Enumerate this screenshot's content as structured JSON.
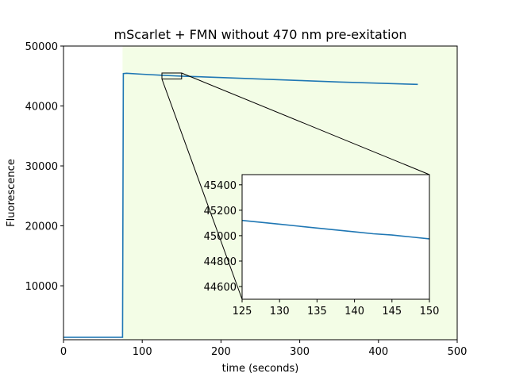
{
  "chart_data": [
    {
      "type": "line",
      "title": "mScarlet + FMN without 470 nm pre-exitation",
      "xlabel": "time (seconds)",
      "ylabel": "Fluorescence",
      "xlim": [
        0,
        500
      ],
      "ylim": [
        1000,
        50000
      ],
      "xticks": [
        0,
        100,
        200,
        300,
        400,
        500
      ],
      "yticks": [
        10000,
        20000,
        30000,
        40000,
        50000
      ],
      "grid": false,
      "shaded_region": {
        "x_start": 75,
        "x_end": 500,
        "color": "#f3fde6"
      },
      "line_color": "#1f77b4",
      "series": [
        {
          "x": [
            0,
            75,
            76,
            80,
            100,
            125,
            150,
            200,
            250,
            300,
            350,
            400,
            450
          ],
          "y": [
            1400,
            1400,
            45400,
            45450,
            45300,
            45130,
            44980,
            44750,
            44500,
            44250,
            44000,
            43800,
            43600
          ]
        }
      ],
      "zoom_box": {
        "x": [
          125,
          150
        ],
        "y": [
          44500,
          45500
        ]
      }
    },
    {
      "type": "line",
      "role": "inset",
      "xlim": [
        125,
        150
      ],
      "ylim": [
        44500,
        45480
      ],
      "xticks": [
        125,
        130,
        135,
        140,
        145,
        150
      ],
      "yticks": [
        44600,
        44800,
        45000,
        45200,
        45400
      ],
      "line_color": "#1f77b4",
      "series": [
        {
          "x": [
            125,
            127.5,
            130,
            132.5,
            135,
            137.5,
            140,
            142.5,
            145,
            147.5,
            150
          ],
          "y": [
            45120,
            45105,
            45090,
            45075,
            45060,
            45045,
            45030,
            45015,
            45005,
            44990,
            44975
          ]
        }
      ]
    }
  ]
}
